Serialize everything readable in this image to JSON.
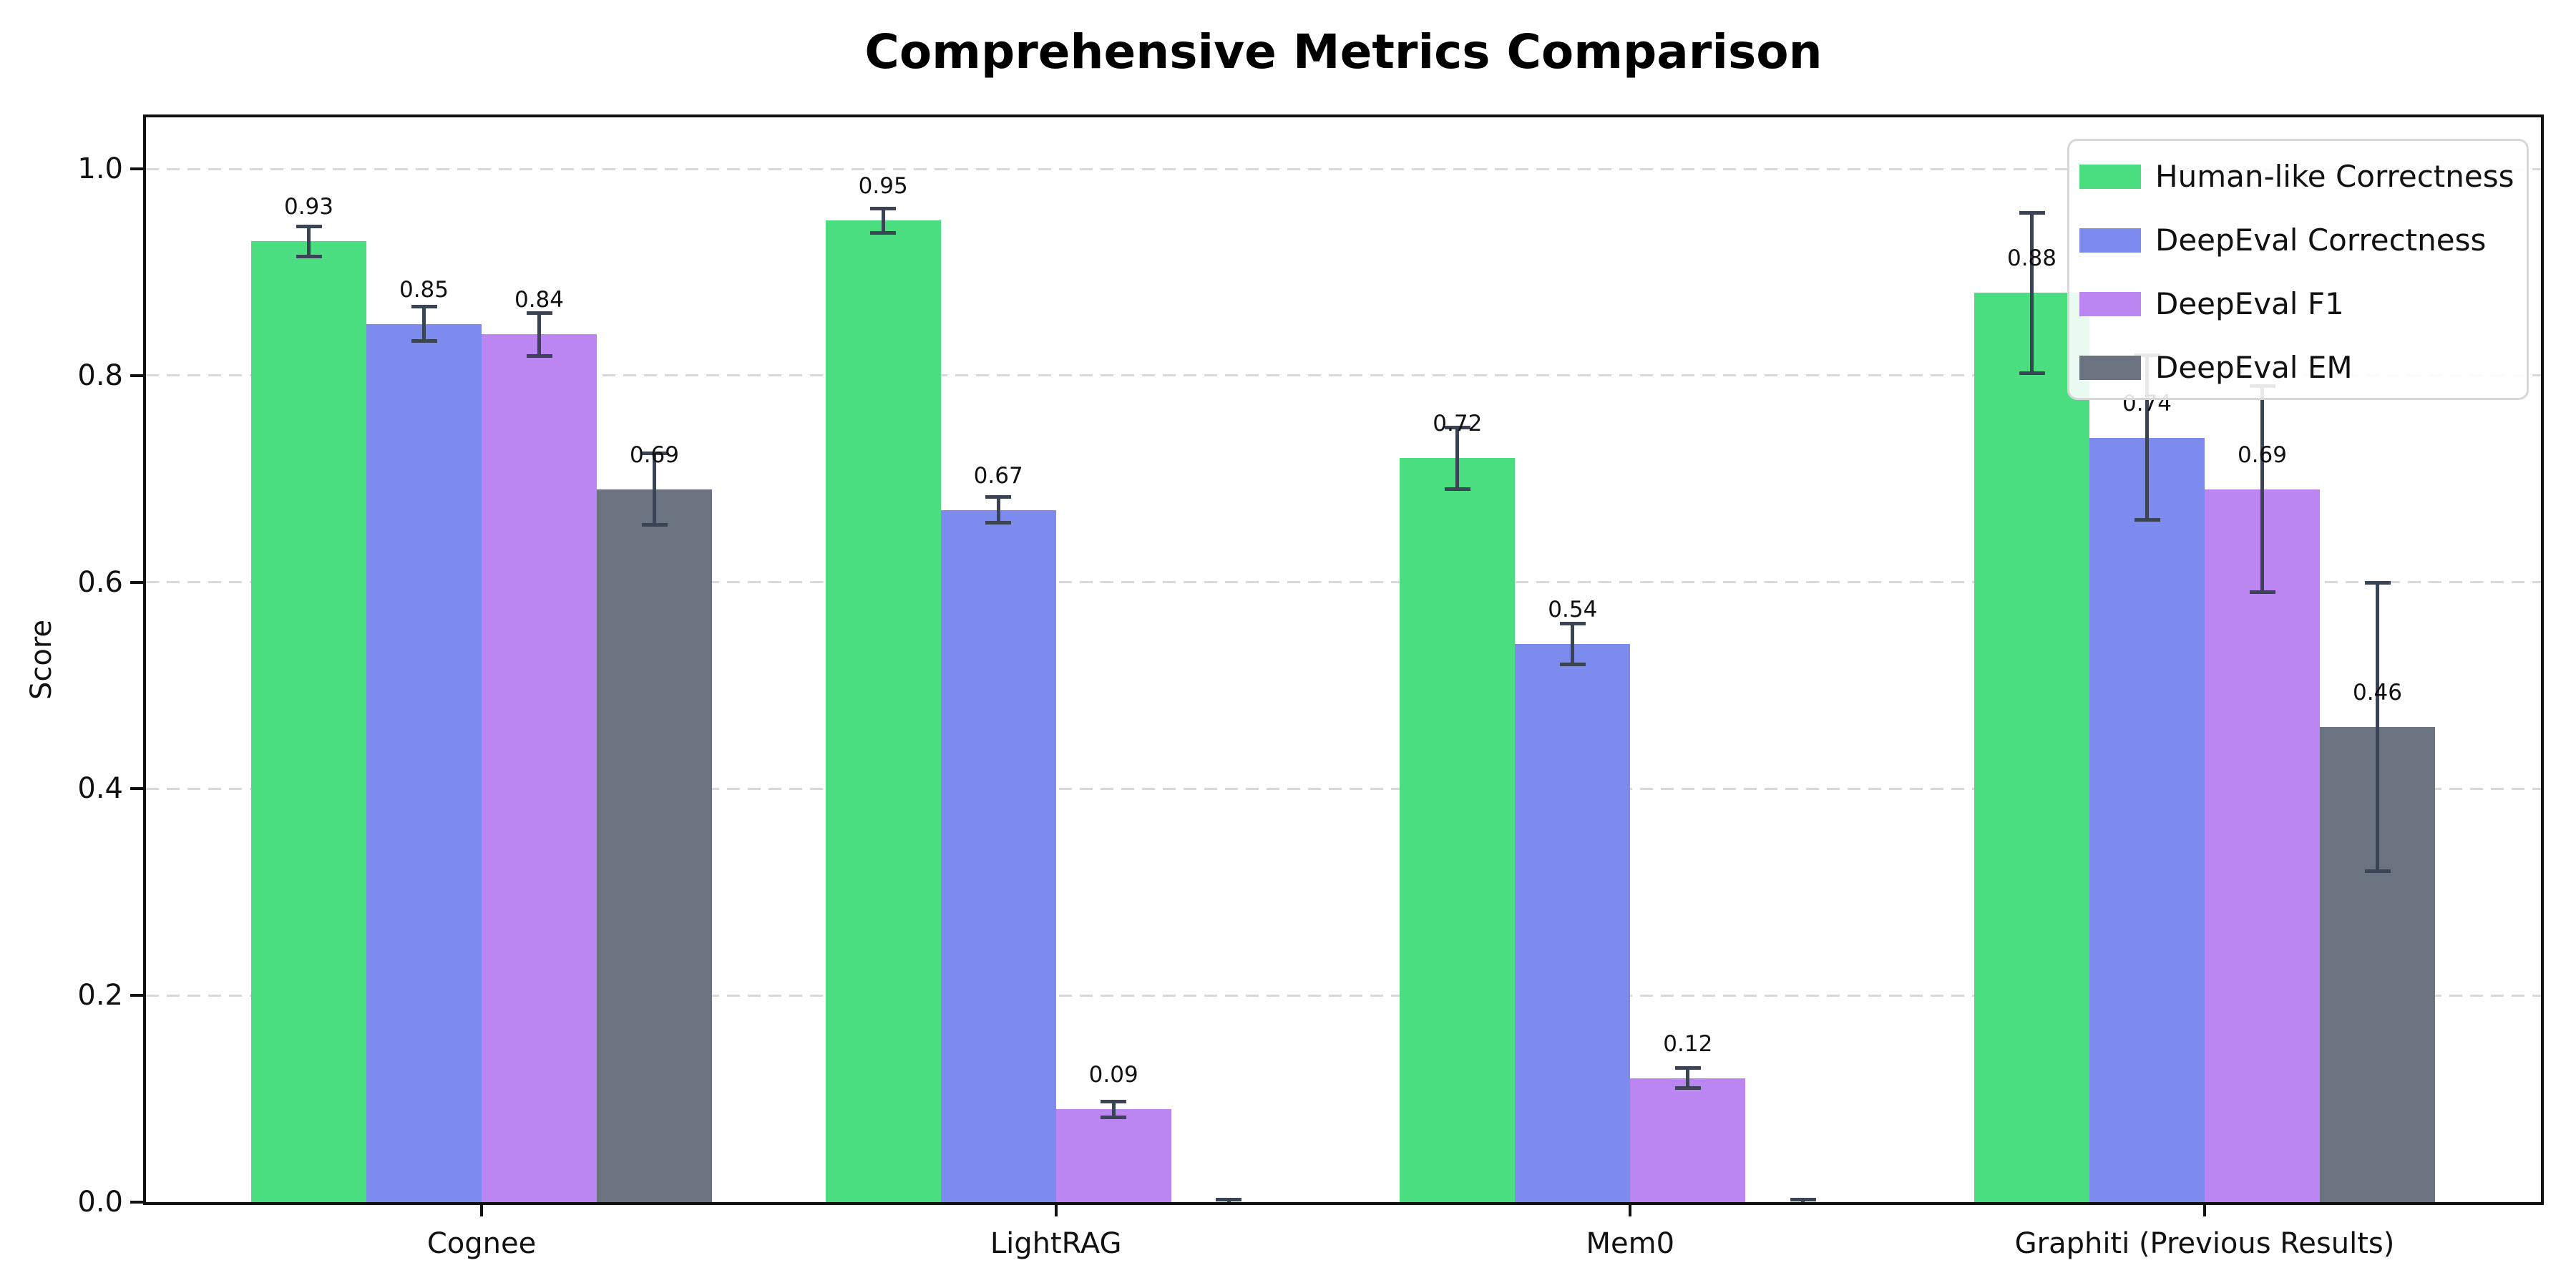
{
  "chart_data": {
    "type": "bar",
    "title": "Comprehensive Metrics Comparison",
    "ylabel": "Score",
    "xlabel": "",
    "categories": [
      "Cognee",
      "LightRAG",
      "Mem0",
      "Graphiti (Previous Results)"
    ],
    "series": [
      {
        "name": "Human-like Correctness",
        "color": "#4ade80",
        "values": [
          0.93,
          0.95,
          0.72,
          0.88
        ],
        "errors": [
          0.015,
          0.012,
          0.03,
          0.078
        ]
      },
      {
        "name": "DeepEval Correctness",
        "color": "#7d8bef",
        "values": [
          0.85,
          0.67,
          0.54,
          0.74
        ],
        "errors": [
          0.017,
          0.013,
          0.02,
          0.08
        ]
      },
      {
        "name": "DeepEval F1",
        "color": "#bb86f2",
        "values": [
          0.84,
          0.09,
          0.12,
          0.69
        ],
        "errors": [
          0.021,
          0.008,
          0.01,
          0.1
        ]
      },
      {
        "name": "DeepEval EM",
        "color": "#6b7280",
        "values": [
          0.69,
          0.0,
          0.0,
          0.46
        ],
        "errors": [
          0.035,
          0.003,
          0.003,
          0.14
        ]
      }
    ],
    "yticks": [
      "0.0",
      "0.2",
      "0.4",
      "0.6",
      "0.8",
      "1.0"
    ],
    "ytick_values": [
      0.0,
      0.2,
      0.4,
      0.6,
      0.8,
      1.0
    ],
    "ylim": [
      0,
      1.05
    ],
    "grid": true,
    "legend_position": "upper right",
    "error_bar_color": "#3a4454"
  }
}
